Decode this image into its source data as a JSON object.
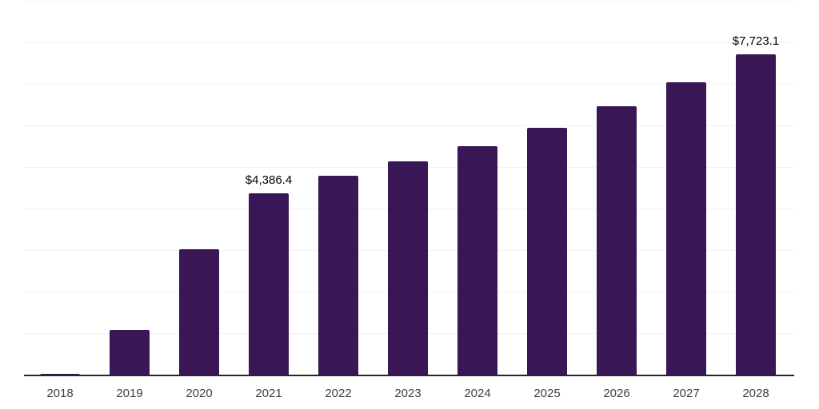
{
  "chart_data": {
    "type": "bar",
    "title": "",
    "xlabel": "",
    "ylabel": "",
    "categories": [
      "2018",
      "2019",
      "2020",
      "2021",
      "2022",
      "2023",
      "2024",
      "2025",
      "2026",
      "2027",
      "2028"
    ],
    "values": [
      30,
      1100,
      3040,
      4386.4,
      4800,
      5150,
      5520,
      5960,
      6480,
      7060,
      7723.1
    ],
    "data_labels": [
      "",
      "",
      "",
      "$4,386.4",
      "",
      "",
      "",
      "",
      "",
      "",
      "$7,723.1"
    ],
    "labeled_points": [
      {
        "category": "2021",
        "label": "$4,386.4",
        "value": 4386.4
      },
      {
        "category": "2028",
        "label": "$7,723.1",
        "value": 7723.1
      }
    ],
    "ylim": [
      0,
      9000
    ],
    "gridline_step": 1000,
    "grid": true,
    "legend": false,
    "colors": {
      "bar": "#391655",
      "gridline": "#f2f2f2",
      "axis_line": "#262626",
      "tick_label": "#404040",
      "data_label": "#000000",
      "background": "#ffffff"
    }
  }
}
